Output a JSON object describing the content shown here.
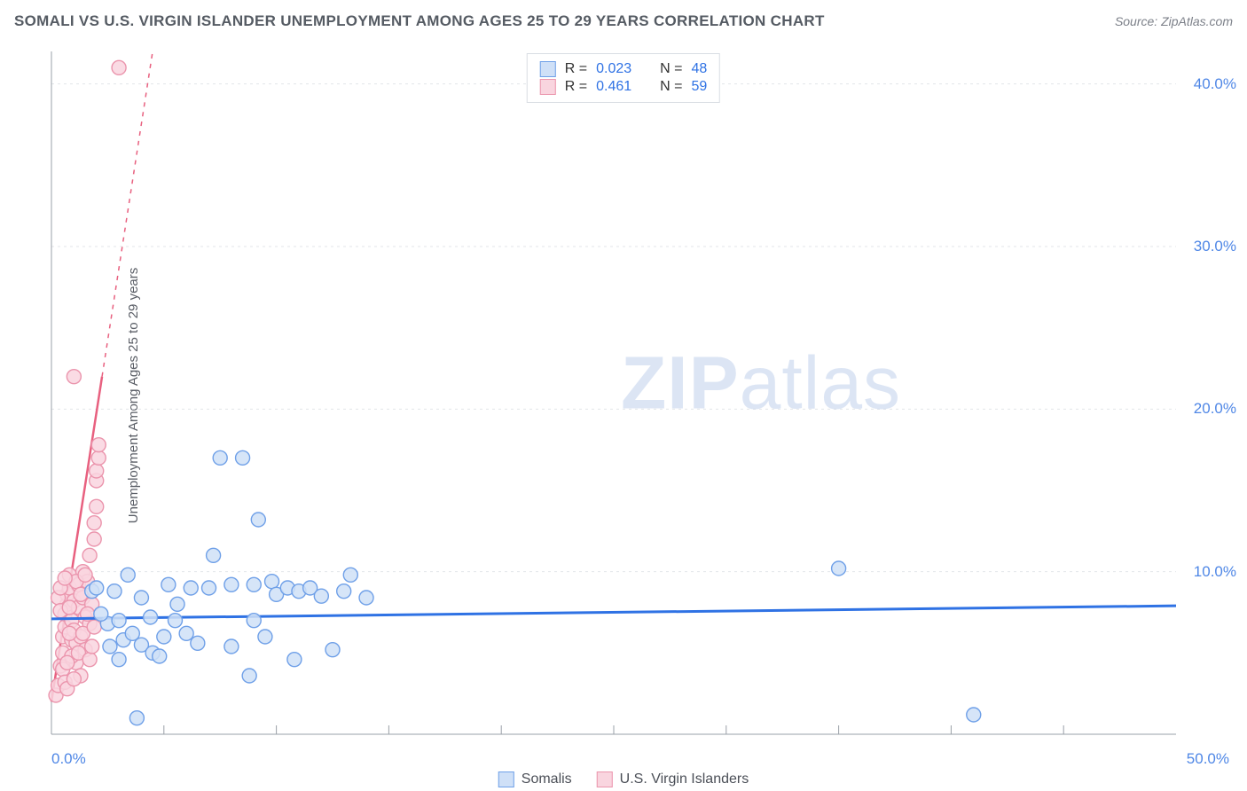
{
  "header": {
    "title": "SOMALI VS U.S. VIRGIN ISLANDER UNEMPLOYMENT AMONG AGES 25 TO 29 YEARS CORRELATION CHART",
    "source": "Source: ZipAtlas.com"
  },
  "ylabel": "Unemployment Among Ages 25 to 29 years",
  "watermark_bold": "ZIP",
  "watermark_light": "atlas",
  "legend_top": {
    "rows": [
      {
        "swatch_fill": "#cfe0f7",
        "swatch_stroke": "#6fa0e8",
        "r_label": "R =",
        "r_value": "0.023",
        "n_label": "N =",
        "n_value": "48"
      },
      {
        "swatch_fill": "#f9d5df",
        "swatch_stroke": "#eb95ad",
        "r_label": "R =",
        "r_value": "0.461",
        "n_label": "N =",
        "n_value": "59"
      }
    ]
  },
  "legend_bottom": {
    "items": [
      {
        "swatch_fill": "#cfe0f7",
        "swatch_stroke": "#6fa0e8",
        "label": "Somalis"
      },
      {
        "swatch_fill": "#f9d5df",
        "swatch_stroke": "#eb95ad",
        "label": "U.S. Virgin Islanders"
      }
    ]
  },
  "chart": {
    "type": "scatter",
    "background_color": "#ffffff",
    "grid_color": "#e3e6ea",
    "axis_color": "#9aa0a8",
    "xlim": [
      0,
      50
    ],
    "ylim": [
      0,
      42
    ],
    "ytick_labels": [
      "10.0%",
      "20.0%",
      "30.0%",
      "40.0%"
    ],
    "ytick_values": [
      10,
      20,
      30,
      40
    ],
    "xtick_labels": [
      "0.0%",
      "50.0%"
    ],
    "xtick_values": [
      0,
      50
    ],
    "xtick_minor_values": [
      5,
      10,
      15,
      20,
      25,
      30,
      35,
      40,
      45
    ],
    "marker_radius": 8,
    "series_blue": {
      "fill": "#cfe0f7",
      "stroke": "#6fa0e8",
      "points": [
        [
          3.8,
          1.0
        ],
        [
          4.4,
          7.2
        ],
        [
          5.0,
          6.0
        ],
        [
          5.2,
          9.2
        ],
        [
          2.5,
          6.8
        ],
        [
          2.8,
          8.8
        ],
        [
          3.0,
          7.0
        ],
        [
          3.2,
          5.8
        ],
        [
          3.6,
          6.2
        ],
        [
          4.0,
          5.5
        ],
        [
          4.0,
          8.4
        ],
        [
          4.5,
          5.0
        ],
        [
          5.5,
          7.0
        ],
        [
          6.0,
          6.2
        ],
        [
          6.2,
          9.0
        ],
        [
          6.5,
          5.6
        ],
        [
          7.0,
          9.0
        ],
        [
          7.2,
          11.0
        ],
        [
          7.5,
          17.0
        ],
        [
          8.0,
          5.4
        ],
        [
          8.0,
          9.2
        ],
        [
          8.5,
          17.0
        ],
        [
          8.8,
          3.6
        ],
        [
          9.0,
          7.0
        ],
        [
          9.0,
          9.2
        ],
        [
          9.2,
          13.2
        ],
        [
          9.5,
          6.0
        ],
        [
          9.8,
          9.4
        ],
        [
          10.0,
          8.6
        ],
        [
          10.5,
          9.0
        ],
        [
          10.8,
          4.6
        ],
        [
          11.0,
          8.8
        ],
        [
          11.5,
          9.0
        ],
        [
          12.0,
          8.5
        ],
        [
          12.5,
          5.2
        ],
        [
          13.0,
          8.8
        ],
        [
          13.3,
          9.8
        ],
        [
          14.0,
          8.4
        ],
        [
          35.0,
          10.2
        ],
        [
          41.0,
          1.2
        ],
        [
          1.8,
          8.8
        ],
        [
          2.0,
          9.0
        ],
        [
          2.2,
          7.4
        ],
        [
          2.6,
          5.4
        ],
        [
          3.0,
          4.6
        ],
        [
          3.4,
          9.8
        ],
        [
          4.8,
          4.8
        ],
        [
          5.6,
          8.0
        ]
      ],
      "trend_line": {
        "x1": 0,
        "y1": 7.1,
        "x2": 50,
        "y2": 7.9,
        "color": "#2f72e4",
        "width": 3
      }
    },
    "series_pink": {
      "fill": "#f9d5df",
      "stroke": "#eb95ad",
      "points": [
        [
          0.2,
          2.4
        ],
        [
          0.3,
          3.0
        ],
        [
          0.4,
          4.2
        ],
        [
          0.5,
          5.0
        ],
        [
          0.5,
          6.0
        ],
        [
          0.6,
          6.6
        ],
        [
          0.6,
          7.4
        ],
        [
          0.7,
          8.0
        ],
        [
          0.7,
          8.6
        ],
        [
          0.8,
          9.0
        ],
        [
          0.8,
          9.8
        ],
        [
          0.9,
          5.8
        ],
        [
          0.9,
          7.0
        ],
        [
          1.0,
          6.4
        ],
        [
          1.0,
          8.2
        ],
        [
          1.1,
          4.4
        ],
        [
          1.1,
          5.6
        ],
        [
          1.2,
          7.8
        ],
        [
          1.2,
          9.2
        ],
        [
          1.3,
          3.6
        ],
        [
          1.3,
          6.0
        ],
        [
          1.4,
          8.4
        ],
        [
          1.4,
          10.0
        ],
        [
          1.5,
          5.2
        ],
        [
          1.5,
          7.2
        ],
        [
          1.6,
          9.4
        ],
        [
          1.7,
          11.0
        ],
        [
          1.7,
          6.8
        ],
        [
          1.8,
          8.0
        ],
        [
          1.9,
          12.0
        ],
        [
          1.9,
          13.0
        ],
        [
          2.0,
          14.0
        ],
        [
          2.0,
          15.6
        ],
        [
          2.0,
          16.2
        ],
        [
          2.1,
          17.0
        ],
        [
          2.1,
          17.8
        ],
        [
          1.0,
          22.0
        ],
        [
          3.0,
          41.0
        ],
        [
          0.3,
          8.4
        ],
        [
          0.4,
          9.0
        ],
        [
          0.4,
          7.6
        ],
        [
          0.5,
          4.0
        ],
        [
          0.6,
          3.2
        ],
        [
          0.7,
          2.8
        ],
        [
          0.8,
          6.2
        ],
        [
          0.9,
          4.8
        ],
        [
          1.0,
          3.4
        ],
        [
          1.1,
          9.4
        ],
        [
          1.2,
          5.0
        ],
        [
          1.3,
          8.6
        ],
        [
          1.4,
          6.2
        ],
        [
          1.5,
          9.8
        ],
        [
          1.6,
          7.4
        ],
        [
          1.7,
          4.6
        ],
        [
          1.8,
          5.4
        ],
        [
          1.9,
          6.6
        ],
        [
          0.6,
          9.6
        ],
        [
          0.7,
          4.4
        ],
        [
          0.8,
          7.8
        ]
      ],
      "trend_line": {
        "x1": 0,
        "y1": 2.0,
        "x2": 4.5,
        "y2": 42.0,
        "color": "#e8607f",
        "width": 2.5,
        "dashed_after_y": 22
      }
    }
  },
  "colors": {
    "title_text": "#555b63",
    "axis_label_text": "#5a5e66",
    "tick_text": "#4f87e6",
    "legend_value_text": "#2f72e4"
  }
}
